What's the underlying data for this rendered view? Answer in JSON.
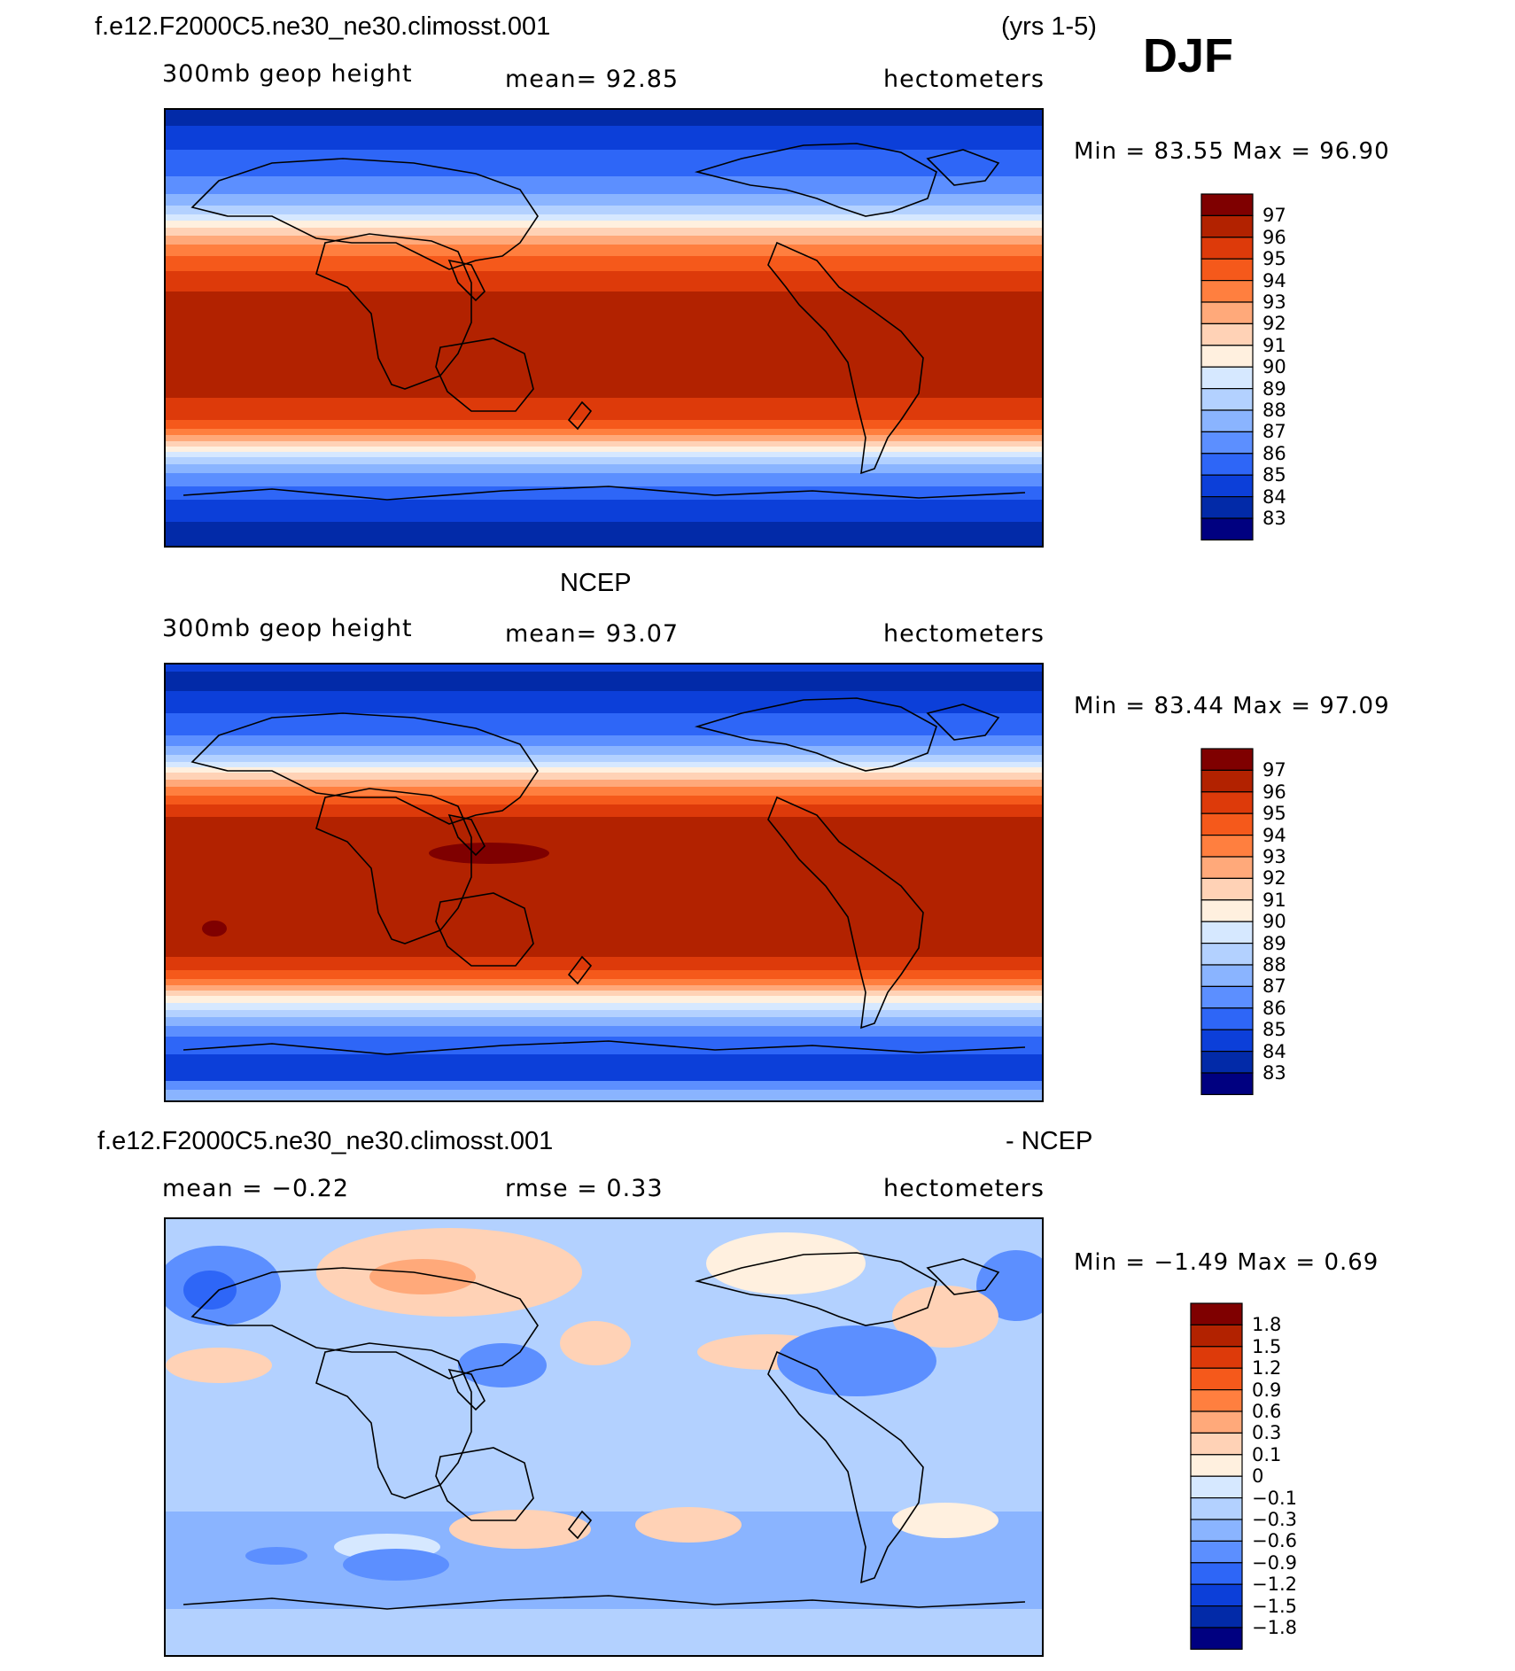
{
  "header": {
    "case_name": "f.e12.F2000C5.ne30_ne30.climosst.001",
    "years": "(yrs 1-5)",
    "season": "DJF"
  },
  "panels": [
    {
      "id": "model",
      "title": "",
      "variable": "300mb geop height",
      "stat": "mean=   92.85",
      "units": "hectometers",
      "minmax": "Min =   83.55  Max =   96.90",
      "legend": [
        "97",
        "96",
        "95",
        "94",
        "93",
        "92",
        "91",
        "90",
        "89",
        "88",
        "87",
        "86",
        "85",
        "84",
        "83"
      ],
      "colors": [
        "#7f0000",
        "#b22200",
        "#dd3a0a",
        "#f5591b",
        "#ff7f3f",
        "#ffa97a",
        "#ffd2b6",
        "#fff0df",
        "#d6e8ff",
        "#b3d1ff",
        "#8ab4ff",
        "#5c8fff",
        "#2e66f7",
        "#0c3fd9",
        "#022aa8",
        "#000080"
      ],
      "features": []
    },
    {
      "id": "obs",
      "title": "NCEP",
      "variable": "300mb geop height",
      "stat": "mean=   93.07",
      "units": "hectometers",
      "minmax": "Min =   83.44  Max =   97.09",
      "legend": [
        "97",
        "96",
        "95",
        "94",
        "93",
        "92",
        "91",
        "90",
        "89",
        "88",
        "87",
        "86",
        "85",
        "84",
        "83"
      ],
      "colors": [
        "#7f0000",
        "#b22200",
        "#dd3a0a",
        "#f5591b",
        "#ff7f3f",
        "#ffa97a",
        "#ffd2b6",
        "#fff0df",
        "#d6e8ff",
        "#b3d1ff",
        "#8ab4ff",
        "#5c8fff",
        "#2e66f7",
        "#0c3fd9",
        "#022aa8",
        "#000080"
      ],
      "features": []
    },
    {
      "id": "diff",
      "title_left": "f.e12.F2000C5.ne30_ne30.climosst.001",
      "title_right": "- NCEP",
      "stat_left": "mean =   −0.22",
      "stat_mid": "rmse =     0.33",
      "units": "hectometers",
      "minmax": "Min =   −1.49  Max =     0.69",
      "legend": [
        "1.8",
        "1.5",
        "1.2",
        "0.9",
        "0.6",
        "0.3",
        "0.1",
        "0",
        "−0.1",
        "−0.3",
        "−0.6",
        "−0.9",
        "−1.2",
        "−1.5",
        "−1.8"
      ],
      "colors": [
        "#7f0000",
        "#b22200",
        "#dd3a0a",
        "#f5591b",
        "#ff7f3f",
        "#ffa97a",
        "#ffd2b6",
        "#fff0df",
        "#d6e8ff",
        "#b3d1ff",
        "#8ab4ff",
        "#5c8fff",
        "#2e66f7",
        "#0c3fd9",
        "#022aa8",
        "#000080"
      ],
      "features": []
    }
  ]
}
